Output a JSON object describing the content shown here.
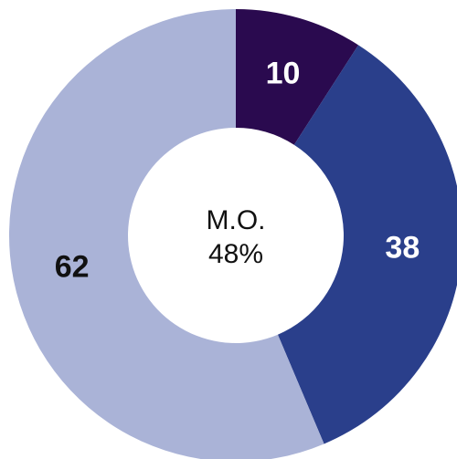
{
  "chart_data": {
    "type": "donut",
    "values": [
      10,
      38,
      62
    ],
    "colors": [
      "#2a0a4f",
      "#2a3f8b",
      "#aab3d7"
    ],
    "label_colors": [
      "#ffffff",
      "#ffffff",
      "#111111"
    ],
    "center_text": [
      "M.O.",
      "48%"
    ]
  }
}
